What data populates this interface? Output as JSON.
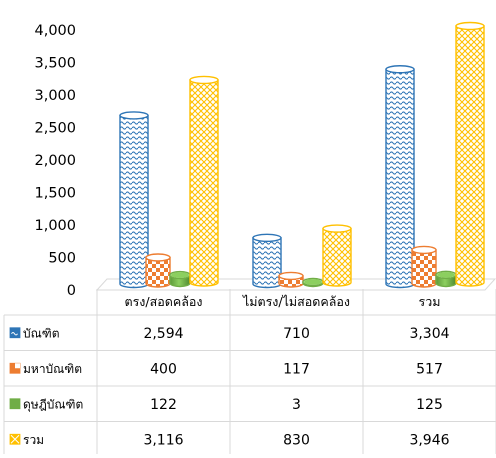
{
  "chart_data": {
    "type": "bar",
    "variant": "3d-cylinder-with-data-table",
    "title": "",
    "xlabel": "",
    "ylabel": "",
    "ylim": [
      0,
      4000
    ],
    "y_ticks": [
      "0",
      "500",
      "1,000",
      "1,500",
      "2,000",
      "2,500",
      "3,000",
      "3,500",
      "4,000"
    ],
    "grid": false,
    "legend": "data-table-left",
    "categories": [
      "ตรง/สอดคล้อง",
      "ไม่ตรง/ไม่สอดคล้อง",
      "รวม"
    ],
    "series": [
      {
        "name": "บัณฑิต",
        "values": [
          2594,
          710,
          3304
        ],
        "labels": [
          "2,594",
          "710",
          "3,304"
        ],
        "color": "#2e75b6",
        "pattern": "wave"
      },
      {
        "name": "มหาบัณฑิต",
        "values": [
          400,
          117,
          517
        ],
        "labels": [
          "400",
          "117",
          "517"
        ],
        "color": "#ed7d31",
        "pattern": "checker"
      },
      {
        "name": "ดุษฎีบัณฑิต",
        "values": [
          122,
          3,
          125
        ],
        "labels": [
          "122",
          "3",
          "125"
        ],
        "color": "#70ad47",
        "pattern": "solid"
      },
      {
        "name": "รวม",
        "values": [
          3116,
          830,
          3946
        ],
        "labels": [
          "3,116",
          "830",
          "3,946"
        ],
        "color": "#ffc000",
        "pattern": "diamond"
      }
    ]
  }
}
